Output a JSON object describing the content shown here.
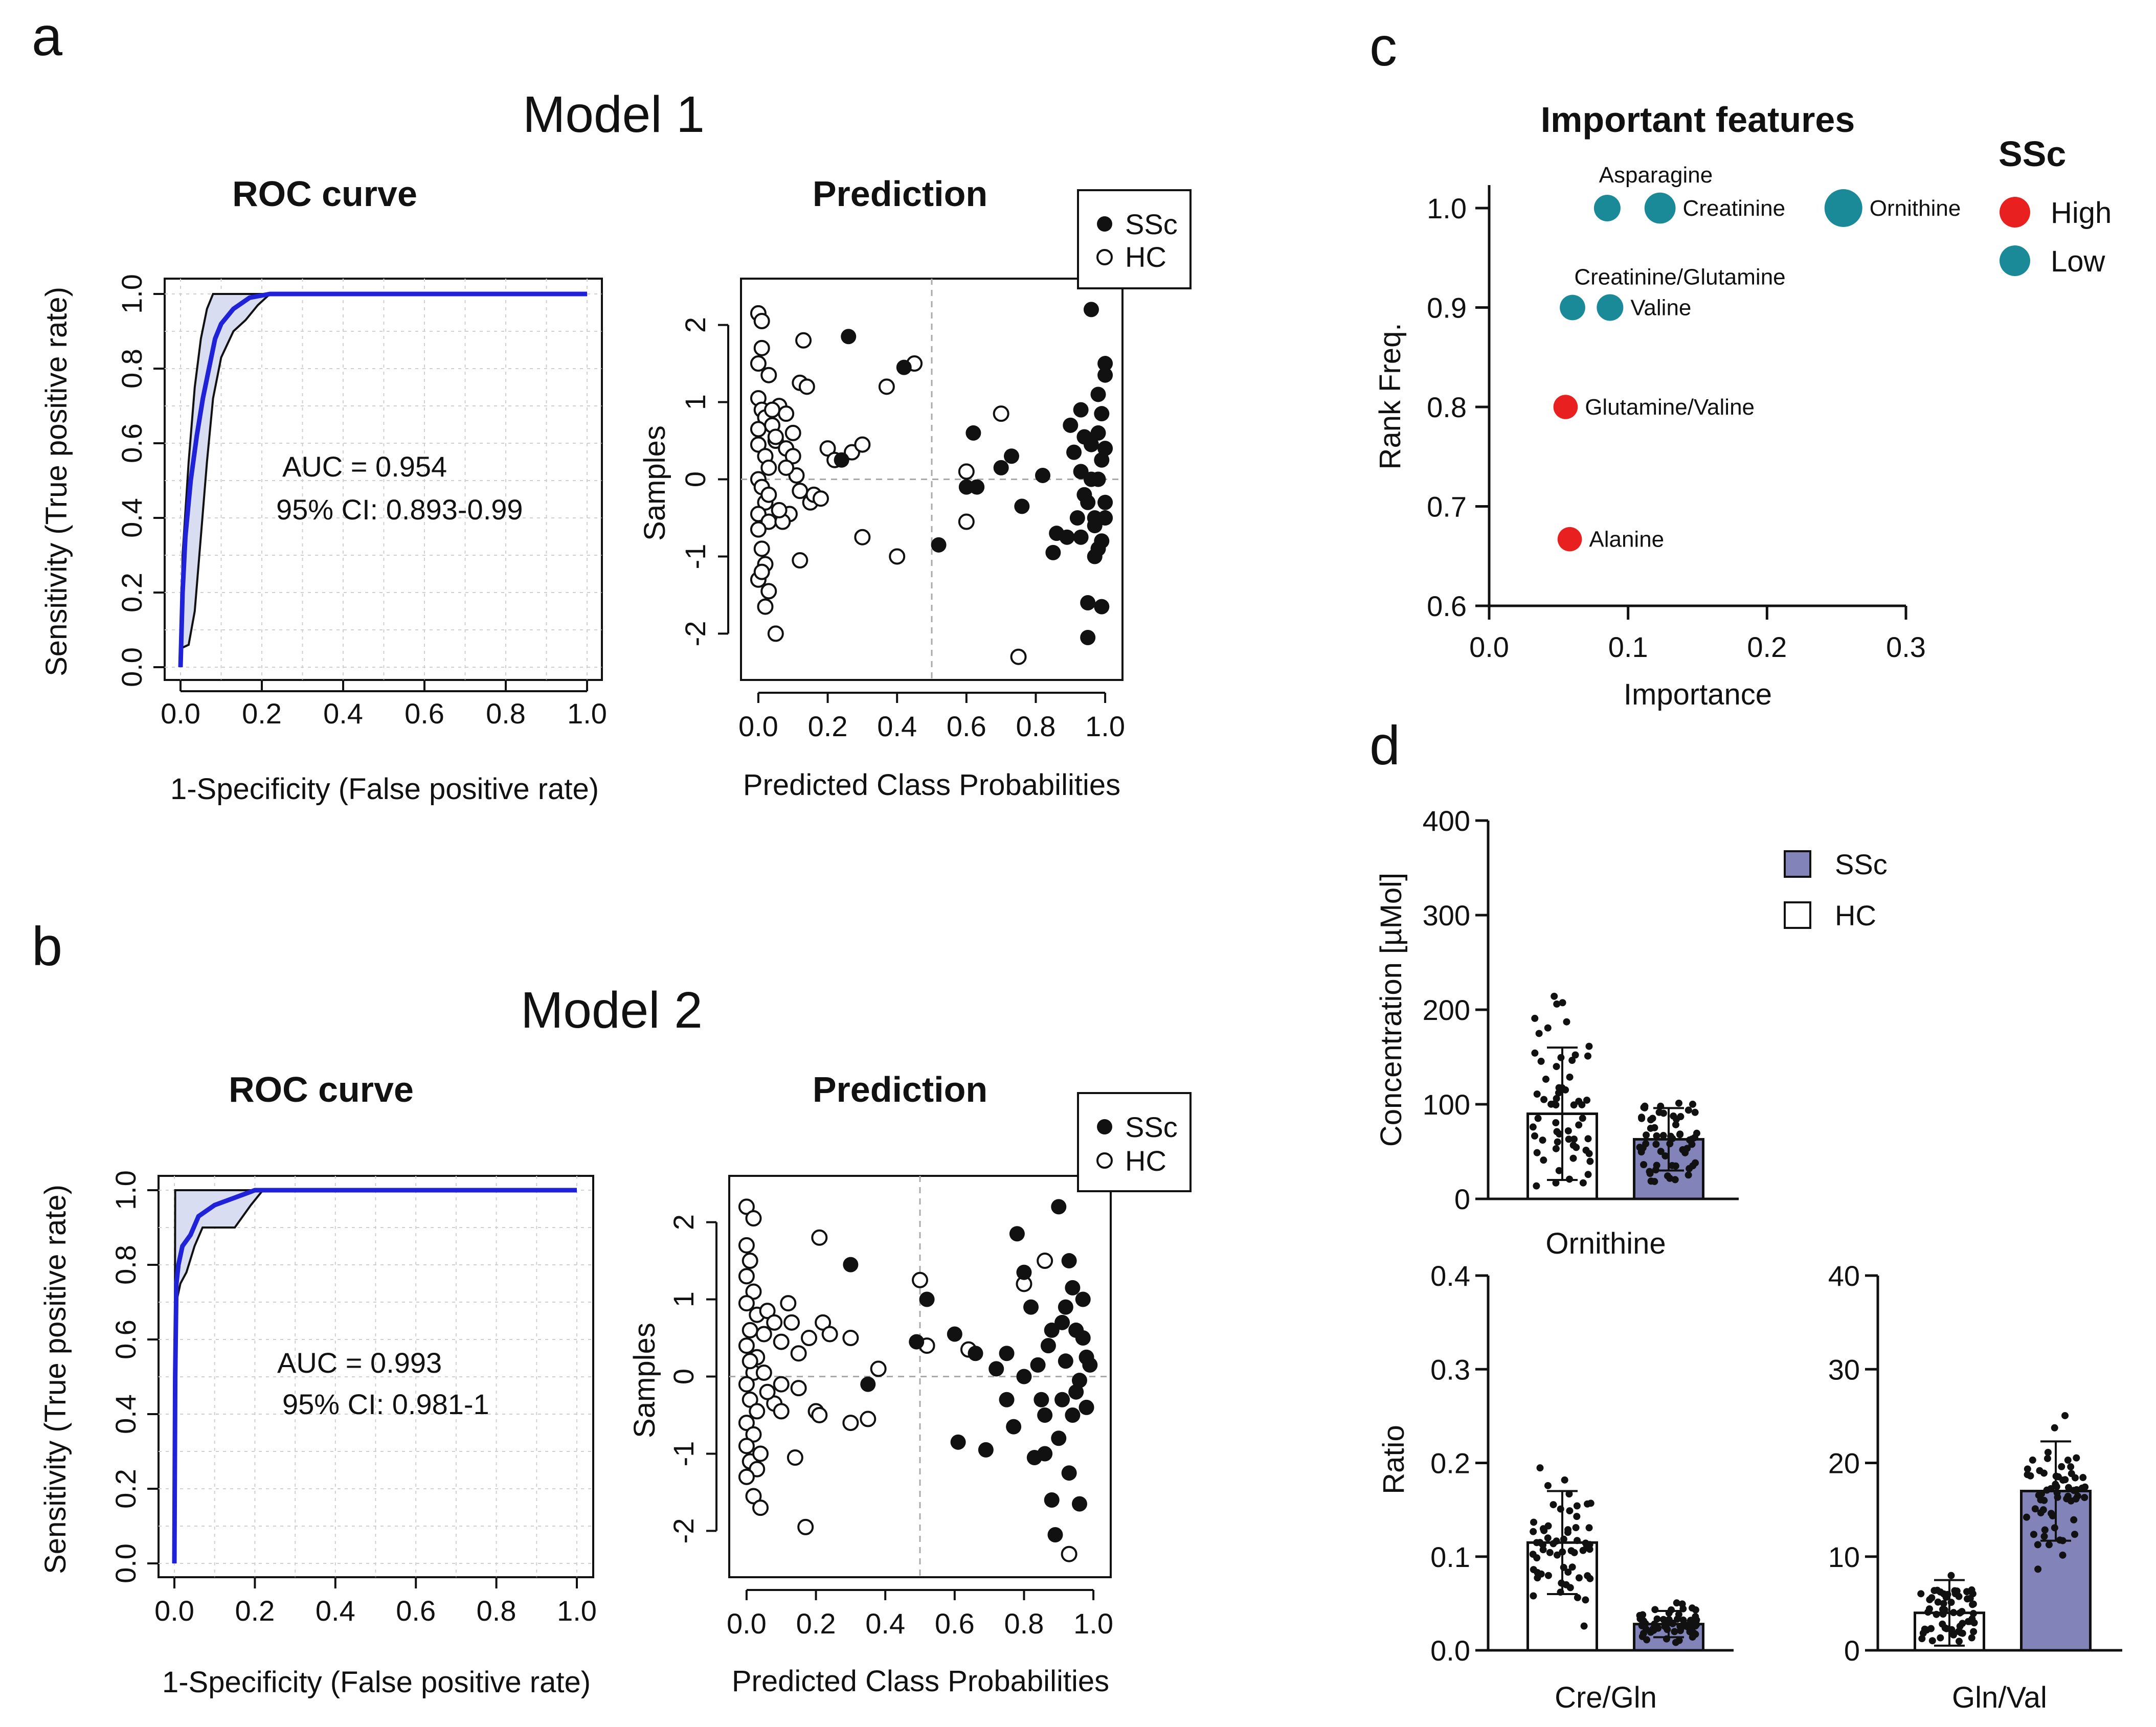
{
  "panels": {
    "a": "a",
    "b": "b",
    "c": "c",
    "d": "d"
  },
  "colors": {
    "roc_line": "#1f22d6",
    "roc_band": "#d9ddf2",
    "ssc_bar": "#8283b8",
    "high": "#e8201f",
    "low": "#1a8a99"
  },
  "chart_data": [
    {
      "id": "model1-roc",
      "type": "line",
      "model_title": "Model 1",
      "title": "ROC curve",
      "xlabel": "1-Specificity (False positive rate)",
      "ylabel": "Sensitivity (True positive rate)",
      "xlim": [
        0,
        1
      ],
      "ylim": [
        0,
        1
      ],
      "xticks": [
        "0.0",
        "0.2",
        "0.4",
        "0.6",
        "0.8",
        "1.0"
      ],
      "yticks": [
        "0.0",
        "0.2",
        "0.4",
        "0.6",
        "0.8",
        "1.0"
      ],
      "grid": true,
      "auc_text": "AUC = 0.954",
      "ci_text": "95% CI: 0.893-0.99",
      "curve": [
        [
          0,
          0
        ],
        [
          0.005,
          0.2
        ],
        [
          0.012,
          0.35
        ],
        [
          0.025,
          0.5
        ],
        [
          0.04,
          0.62
        ],
        [
          0.055,
          0.72
        ],
        [
          0.07,
          0.8
        ],
        [
          0.085,
          0.88
        ],
        [
          0.1,
          0.92
        ],
        [
          0.13,
          0.96
        ],
        [
          0.17,
          0.99
        ],
        [
          0.22,
          1
        ],
        [
          1,
          1
        ]
      ],
      "ci_upper": [
        [
          0,
          0
        ],
        [
          0.005,
          0.3
        ],
        [
          0.02,
          0.55
        ],
        [
          0.035,
          0.75
        ],
        [
          0.05,
          0.88
        ],
        [
          0.065,
          0.96
        ],
        [
          0.08,
          1
        ],
        [
          1,
          1
        ]
      ],
      "ci_lower": [
        [
          0,
          0.05
        ],
        [
          0.02,
          0.06
        ],
        [
          0.035,
          0.15
        ],
        [
          0.05,
          0.35
        ],
        [
          0.065,
          0.55
        ],
        [
          0.08,
          0.72
        ],
        [
          0.1,
          0.83
        ],
        [
          0.13,
          0.9
        ],
        [
          0.16,
          0.93
        ],
        [
          0.19,
          0.97
        ],
        [
          0.22,
          1
        ],
        [
          1,
          1
        ]
      ]
    },
    {
      "id": "model1-pred",
      "type": "scatter",
      "title": "Prediction",
      "xlabel": "Predicted Class Probabilities",
      "ylabel": "Samples",
      "xlim": [
        -0.05,
        1.05
      ],
      "ylim": [
        -2.6,
        2.6
      ],
      "xticks": [
        "0.0",
        "0.2",
        "0.4",
        "0.6",
        "0.8",
        "1.0"
      ],
      "yticks": [
        "-2",
        "-1",
        "0",
        "1",
        "2"
      ],
      "legend": [
        "SSc",
        "HC"
      ],
      "ssc": [
        [
          0.26,
          1.85
        ],
        [
          0.42,
          1.45
        ],
        [
          0.24,
          0.25
        ],
        [
          0.52,
          -0.85
        ],
        [
          0.6,
          -0.1
        ],
        [
          0.62,
          0.6
        ],
        [
          0.63,
          -0.1
        ],
        [
          0.7,
          0.15
        ],
        [
          0.73,
          0.3
        ],
        [
          0.76,
          -0.35
        ],
        [
          0.82,
          0.05
        ],
        [
          0.85,
          -0.95
        ],
        [
          0.86,
          -0.7
        ],
        [
          0.89,
          -0.75
        ],
        [
          0.9,
          0.7
        ],
        [
          0.91,
          0.35
        ],
        [
          0.92,
          -0.5
        ],
        [
          0.93,
          0.9
        ],
        [
          0.93,
          0.1
        ],
        [
          0.94,
          0.55
        ],
        [
          0.94,
          -0.2
        ],
        [
          0.95,
          -1.6
        ],
        [
          0.95,
          -2.05
        ],
        [
          0.96,
          2.2
        ],
        [
          0.96,
          0.45
        ],
        [
          0.97,
          -0.6
        ],
        [
          0.97,
          -1.0
        ],
        [
          0.98,
          1.1
        ],
        [
          0.98,
          0.0
        ],
        [
          0.99,
          -0.8
        ],
        [
          0.99,
          0.85
        ],
        [
          0.99,
          -1.65
        ],
        [
          1.0,
          1.5
        ],
        [
          1.0,
          1.35
        ],
        [
          1.0,
          0.4
        ],
        [
          1.0,
          -0.3
        ],
        [
          0.97,
          -0.5
        ],
        [
          0.99,
          0.25
        ],
        [
          0.96,
          0.0
        ],
        [
          0.98,
          -0.9
        ],
        [
          0.93,
          -0.75
        ],
        [
          0.95,
          -0.3
        ],
        [
          1.0,
          -0.5
        ],
        [
          0.98,
          0.6
        ]
      ],
      "hc": [
        [
          0.0,
          2.15
        ],
        [
          0.01,
          2.05
        ],
        [
          0.01,
          1.7
        ],
        [
          0.0,
          1.5
        ],
        [
          0.03,
          1.35
        ],
        [
          0.0,
          1.05
        ],
        [
          0.01,
          0.9
        ],
        [
          0.02,
          0.8
        ],
        [
          0.04,
          0.7
        ],
        [
          0.05,
          0.5
        ],
        [
          0.0,
          0.45
        ],
        [
          0.02,
          0.3
        ],
        [
          0.03,
          0.15
        ],
        [
          0.0,
          0.0
        ],
        [
          0.01,
          -0.1
        ],
        [
          0.02,
          -0.3
        ],
        [
          0.0,
          -0.45
        ],
        [
          0.03,
          -0.55
        ],
        [
          0.0,
          -0.65
        ],
        [
          0.01,
          -0.9
        ],
        [
          0.02,
          -1.1
        ],
        [
          0.0,
          -1.3
        ],
        [
          0.03,
          -1.45
        ],
        [
          0.02,
          -1.65
        ],
        [
          0.05,
          -2.0
        ],
        [
          0.06,
          0.95
        ],
        [
          0.08,
          0.85
        ],
        [
          0.1,
          0.6
        ],
        [
          0.08,
          0.4
        ],
        [
          0.1,
          0.3
        ],
        [
          0.11,
          0.05
        ],
        [
          0.12,
          -0.15
        ],
        [
          0.15,
          -0.3
        ],
        [
          0.16,
          -0.2
        ],
        [
          0.13,
          1.8
        ],
        [
          0.12,
          1.25
        ],
        [
          0.14,
          1.2
        ],
        [
          0.2,
          0.4
        ],
        [
          0.22,
          0.25
        ],
        [
          0.27,
          0.35
        ],
        [
          0.3,
          0.45
        ],
        [
          0.18,
          -0.25
        ],
        [
          0.09,
          -0.45
        ],
        [
          0.07,
          -0.55
        ],
        [
          0.12,
          -1.05
        ],
        [
          0.3,
          -0.75
        ],
        [
          0.4,
          -1.0
        ],
        [
          0.37,
          1.2
        ],
        [
          0.45,
          1.5
        ],
        [
          0.6,
          0.1
        ],
        [
          0.6,
          -0.55
        ],
        [
          0.7,
          0.85
        ],
        [
          0.75,
          -2.3
        ],
        [
          0.03,
          -0.2
        ],
        [
          0.05,
          0.55
        ],
        [
          0.04,
          0.9
        ],
        [
          0.06,
          -0.4
        ],
        [
          0.08,
          0.15
        ],
        [
          0.01,
          -1.2
        ],
        [
          0.0,
          0.65
        ]
      ]
    },
    {
      "id": "model2-roc",
      "type": "line",
      "model_title": "Model 2",
      "title": "ROC curve",
      "xlabel": "1-Specificity (False positive rate)",
      "ylabel": "Sensitivity (True positive rate)",
      "xlim": [
        0,
        1
      ],
      "ylim": [
        0,
        1
      ],
      "xticks": [
        "0.0",
        "0.2",
        "0.4",
        "0.6",
        "0.8",
        "1.0"
      ],
      "yticks": [
        "0.0",
        "0.2",
        "0.4",
        "0.6",
        "0.8",
        "1.0"
      ],
      "grid": true,
      "auc_text": "AUC = 0.993",
      "ci_text": "95% CI: 0.981-1",
      "curve": [
        [
          0,
          0
        ],
        [
          0.002,
          0.5
        ],
        [
          0.005,
          0.75
        ],
        [
          0.01,
          0.8
        ],
        [
          0.02,
          0.85
        ],
        [
          0.04,
          0.88
        ],
        [
          0.06,
          0.93
        ],
        [
          0.1,
          0.96
        ],
        [
          0.15,
          0.98
        ],
        [
          0.2,
          1
        ],
        [
          1,
          1
        ]
      ],
      "ci_upper": [
        [
          0,
          0
        ],
        [
          0.002,
          1
        ],
        [
          1,
          1
        ]
      ],
      "ci_lower": [
        [
          0,
          0
        ],
        [
          0.003,
          0.4
        ],
        [
          0.005,
          0.7
        ],
        [
          0.015,
          0.75
        ],
        [
          0.03,
          0.78
        ],
        [
          0.05,
          0.85
        ],
        [
          0.07,
          0.9
        ],
        [
          0.15,
          0.9
        ],
        [
          0.19,
          0.96
        ],
        [
          0.22,
          1
        ],
        [
          1,
          1
        ]
      ]
    },
    {
      "id": "model2-pred",
      "type": "scatter",
      "title": "Prediction",
      "xlabel": "Predicted Class Probabilities",
      "ylabel": "Samples",
      "xlim": [
        -0.05,
        1.05
      ],
      "ylim": [
        -2.6,
        2.6
      ],
      "xticks": [
        "0.0",
        "0.2",
        "0.4",
        "0.6",
        "0.8",
        "1.0"
      ],
      "yticks": [
        "-2",
        "-1",
        "0",
        "1",
        "2"
      ],
      "legend": [
        "SSc",
        "HC"
      ],
      "ssc": [
        [
          0.3,
          1.45
        ],
        [
          0.35,
          -0.1
        ],
        [
          0.49,
          0.45
        ],
        [
          0.52,
          1.0
        ],
        [
          0.6,
          0.55
        ],
        [
          0.61,
          -0.85
        ],
        [
          0.66,
          0.3
        ],
        [
          0.69,
          -0.95
        ],
        [
          0.72,
          0.1
        ],
        [
          0.75,
          0.3
        ],
        [
          0.77,
          -0.65
        ],
        [
          0.78,
          1.85
        ],
        [
          0.8,
          1.35
        ],
        [
          0.82,
          0.9
        ],
        [
          0.83,
          -1.05
        ],
        [
          0.84,
          0.15
        ],
        [
          0.85,
          -0.3
        ],
        [
          0.86,
          -0.5
        ],
        [
          0.87,
          0.4
        ],
        [
          0.88,
          -1.6
        ],
        [
          0.89,
          -2.05
        ],
        [
          0.9,
          2.2
        ],
        [
          0.9,
          -0.8
        ],
        [
          0.91,
          0.7
        ],
        [
          0.92,
          0.2
        ],
        [
          0.93,
          -1.25
        ],
        [
          0.94,
          1.15
        ],
        [
          0.94,
          -0.5
        ],
        [
          0.95,
          0.6
        ],
        [
          0.96,
          -0.05
        ],
        [
          0.96,
          -1.65
        ],
        [
          0.97,
          1.0
        ],
        [
          0.98,
          0.25
        ],
        [
          0.99,
          0.15
        ],
        [
          0.93,
          1.5
        ],
        [
          0.95,
          -0.2
        ],
        [
          0.97,
          0.5
        ],
        [
          0.8,
          0.0
        ],
        [
          0.86,
          -1.0
        ],
        [
          0.91,
          -0.3
        ],
        [
          0.75,
          -0.3
        ],
        [
          0.88,
          0.6
        ],
        [
          0.98,
          -0.4
        ],
        [
          0.92,
          0.9
        ]
      ],
      "hc": [
        [
          0.0,
          2.2
        ],
        [
          0.02,
          2.05
        ],
        [
          0.0,
          1.7
        ],
        [
          0.01,
          1.5
        ],
        [
          0.0,
          1.3
        ],
        [
          0.02,
          1.1
        ],
        [
          0.0,
          0.95
        ],
        [
          0.03,
          0.8
        ],
        [
          0.01,
          0.6
        ],
        [
          0.05,
          0.55
        ],
        [
          0.0,
          0.4
        ],
        [
          0.03,
          0.25
        ],
        [
          0.02,
          0.05
        ],
        [
          0.0,
          -0.1
        ],
        [
          0.01,
          -0.3
        ],
        [
          0.03,
          -0.45
        ],
        [
          0.0,
          -0.6
        ],
        [
          0.02,
          -0.75
        ],
        [
          0.0,
          -0.9
        ],
        [
          0.01,
          -1.1
        ],
        [
          0.03,
          -1.2
        ],
        [
          0.0,
          -1.3
        ],
        [
          0.02,
          -1.55
        ],
        [
          0.04,
          -1.7
        ],
        [
          0.06,
          0.85
        ],
        [
          0.08,
          0.7
        ],
        [
          0.1,
          0.45
        ],
        [
          0.12,
          0.95
        ],
        [
          0.13,
          0.7
        ],
        [
          0.15,
          0.3
        ],
        [
          0.18,
          0.5
        ],
        [
          0.21,
          1.8
        ],
        [
          0.22,
          0.7
        ],
        [
          0.24,
          0.55
        ],
        [
          0.08,
          -0.35
        ],
        [
          0.1,
          -0.45
        ],
        [
          0.1,
          -0.1
        ],
        [
          0.15,
          -0.15
        ],
        [
          0.2,
          -0.45
        ],
        [
          0.21,
          -0.5
        ],
        [
          0.14,
          -1.05
        ],
        [
          0.17,
          -1.95
        ],
        [
          0.3,
          -0.6
        ],
        [
          0.35,
          -0.55
        ],
        [
          0.38,
          0.1
        ],
        [
          0.3,
          0.5
        ],
        [
          0.5,
          1.25
        ],
        [
          0.52,
          0.4
        ],
        [
          0.64,
          0.35
        ],
        [
          0.8,
          1.2
        ],
        [
          0.86,
          1.5
        ],
        [
          0.93,
          -2.3
        ],
        [
          0.06,
          -0.2
        ],
        [
          0.01,
          0.2
        ],
        [
          0.05,
          0.05
        ],
        [
          0.04,
          -1.0
        ]
      ]
    },
    {
      "id": "features",
      "type": "scatter",
      "title": "Important features",
      "xlabel": "Importance",
      "ylabel": "Rank Freq.",
      "xlim": [
        0,
        0.3
      ],
      "ylim": [
        0.6,
        1.03
      ],
      "xticks": [
        "0.0",
        "0.1",
        "0.2",
        "0.3"
      ],
      "yticks": [
        "0.6",
        "0.7",
        "0.8",
        "0.9",
        "1.0"
      ],
      "legend_title": "SSc",
      "legend": [
        "High",
        "Low"
      ],
      "points": [
        {
          "label": "Asparagine",
          "x": 0.085,
          "y": 1.0,
          "group": "Low",
          "size": 1.0
        },
        {
          "label": "Creatinine",
          "x": 0.123,
          "y": 1.0,
          "group": "Low",
          "size": 1.4
        },
        {
          "label": "Ornithine",
          "x": 0.255,
          "y": 1.0,
          "group": "Low",
          "size": 2.0
        },
        {
          "label": "Creatinine/Glutamine",
          "x": 0.06,
          "y": 0.9,
          "group": "Low",
          "size": 0.9
        },
        {
          "label": "Valine",
          "x": 0.087,
          "y": 0.9,
          "group": "Low",
          "size": 1.0
        },
        {
          "label": "Glutamine/Valine",
          "x": 0.055,
          "y": 0.8,
          "group": "High",
          "size": 0.8
        },
        {
          "label": "Alanine",
          "x": 0.058,
          "y": 0.667,
          "group": "High",
          "size": 0.8
        }
      ]
    },
    {
      "id": "ornithine",
      "type": "bar",
      "title": "Ornithine",
      "ylabel": "Concentration [µMol]",
      "ylim": [
        0,
        400
      ],
      "yticks": [
        "0",
        "100",
        "200",
        "300",
        "400"
      ],
      "legend": [
        "SSc",
        "HC"
      ],
      "series": [
        {
          "name": "HC",
          "mean": 90,
          "sd": 70
        },
        {
          "name": "SSc",
          "mean": 63,
          "sd": 33
        }
      ]
    },
    {
      "id": "cregln",
      "type": "bar",
      "title": "Cre/Gln",
      "ylabel": "Ratio",
      "ylim": [
        0,
        0.4
      ],
      "yticks": [
        "0.0",
        "0.1",
        "0.2",
        "0.3",
        "0.4"
      ],
      "series": [
        {
          "name": "HC",
          "mean": 0.115,
          "sd": 0.055
        },
        {
          "name": "SSc",
          "mean": 0.028,
          "sd": 0.014
        }
      ]
    },
    {
      "id": "glnval",
      "type": "bar",
      "title": "Gln/Val",
      "ylabel": "",
      "ylim": [
        0,
        40
      ],
      "yticks": [
        "0",
        "10",
        "20",
        "30",
        "40"
      ],
      "series": [
        {
          "name": "HC",
          "mean": 4,
          "sd": 3.5
        },
        {
          "name": "SSc",
          "mean": 17,
          "sd": 5.3
        }
      ]
    }
  ]
}
